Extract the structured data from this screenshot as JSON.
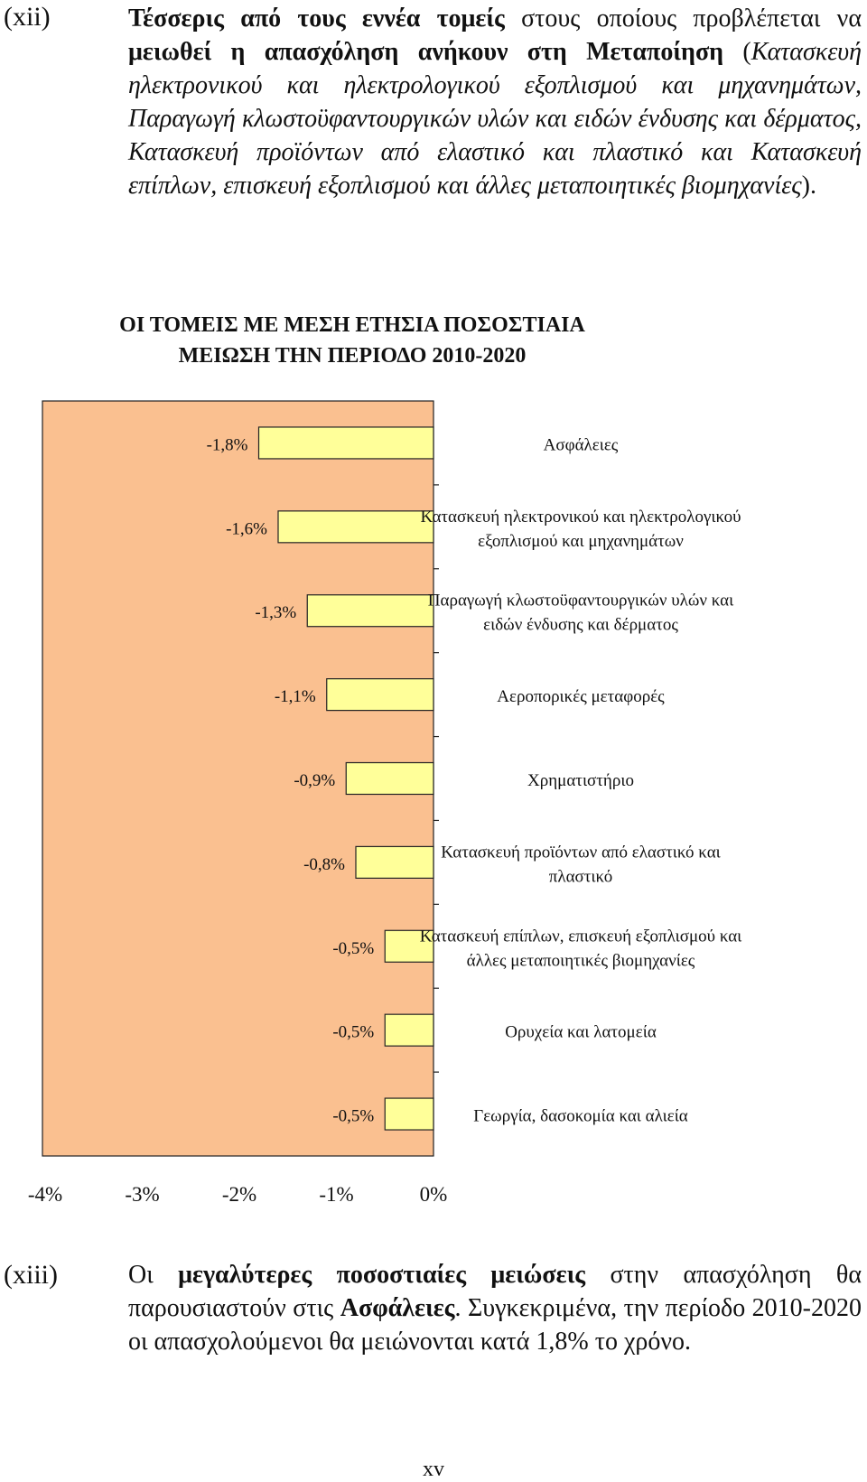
{
  "para_xii": {
    "number": "(xii)",
    "s1_b1": "Τέσσερις από τους εννέα τομείς",
    "s1_t1": " στους οποίους προβλέπεται να ",
    "s1_b2": "μειωθεί η απασχόληση ανήκουν στη Μεταποίηση",
    "s1_t2": " (",
    "s1_i": "Κατασκευή ηλεκτρονικού και ηλεκτρολογικού εξοπλισμού και μηχανημάτων, Παραγωγή κλωστοϋφαντουργικών υλών και ειδών ένδυσης και δέρματος, Κατασκευή προϊόντων από ελαστικό και πλαστικό και Κατασκευή επίπλων, επισκευή εξοπλισμού και άλλες μεταποιητικές βιομηχανίες",
    "s1_t3": ")."
  },
  "chart_title_line1": "ΟΙ ΤΟΜΕΙΣ ΜΕ ΜΕΣΗ ΕΤΗΣΙΑ ΠΟΣΟΣΤΙΑΙΑ",
  "chart_title_line2": "ΜΕΙΩΣΗ ΤΗΝ ΠΕΡΙΟΔΟ 2010-2020",
  "chart_data": {
    "type": "bar",
    "orientation": "horizontal",
    "title": "ΟΙ ΤΟΜΕΙΣ ΜΕ ΜΕΣΗ ΕΤΗΣΙΑ ΠΟΣΟΣΤΙΑΙΑ ΜΕΙΩΣΗ ΤΗΝ ΠΕΡΙΟΔΟ 2010-2020",
    "xlim": [
      -4,
      0
    ],
    "x_ticks": [
      "-4%",
      "-3%",
      "-2%",
      "-1%",
      "0%"
    ],
    "grid": false,
    "plot_background": "#FAC090",
    "bar_color": "#FFFF99",
    "categories": [
      [
        "Ασφάλειες"
      ],
      [
        "Κατασκευή ηλεκτρονικού και ηλεκτρολογικού",
        "εξοπλισμού και μηχανημάτων"
      ],
      [
        "Παραγωγή κλωστοϋφαντουργικών υλών και",
        "ειδών ένδυσης και δέρματος"
      ],
      [
        "Αεροπορικές μεταφορές"
      ],
      [
        "Χρηματιστήριο"
      ],
      [
        "Κατασκευή προϊόντων από ελαστικό και",
        "πλαστικό"
      ],
      [
        "Κατασκευή επίπλων, επισκευή εξοπλισμού και",
        "άλλες μεταποιητικές βιομηχανίες"
      ],
      [
        "Ορυχεία και λατομεία"
      ],
      [
        "Γεωργία, δασοκομία και αλιεία"
      ]
    ],
    "values": [
      -1.8,
      -1.6,
      -1.3,
      -1.1,
      -0.9,
      -0.8,
      -0.5,
      -0.5,
      -0.5
    ],
    "value_labels": [
      "-1,8%",
      "-1,6%",
      "-1,3%",
      "-1,1%",
      "-0,9%",
      "-0,8%",
      "-0,5%",
      "-0,5%",
      "-0,5%"
    ]
  },
  "para_xiii": {
    "number": "(xiii)",
    "t1": "Οι ",
    "b1": "μεγαλύτερες ποσοστιαίες μειώσεις",
    "t2": " στην απασχόληση θα παρουσιαστούν στις ",
    "b2": "Ασφάλειες",
    "t3": ". Συγκεκριμένα, την περίοδο 2010-2020 οι απασχολούμενοι θα μειώνονται κατά 1,8% το χρόνο."
  },
  "page_number": "xv"
}
